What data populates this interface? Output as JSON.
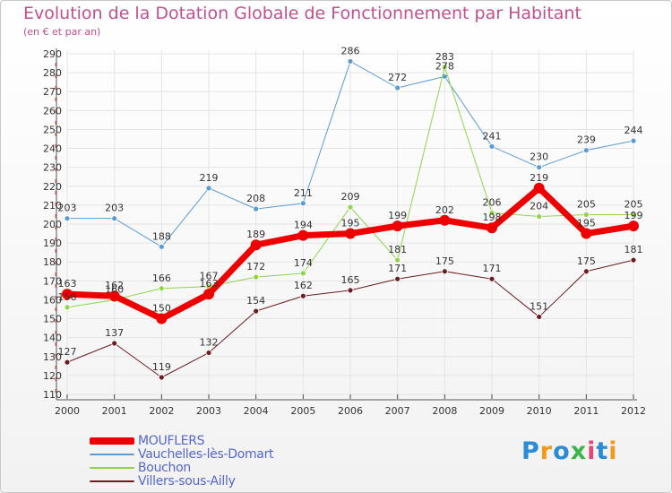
{
  "header": {
    "title": "Evolution de la Dotation Globale de Fonctionnement par Habitant",
    "subtitle": "(en € et par an)"
  },
  "logo": {
    "text": "Proxiti",
    "colors": [
      "#2a8bd6",
      "#f29a1a",
      "#2a8bd6",
      "#39b54a",
      "#e6457a",
      "#2a8bd6",
      "#f29a1a"
    ]
  },
  "chart_data": {
    "type": "line",
    "x": [
      "2000",
      "2001",
      "2002",
      "2003",
      "2004",
      "2005",
      "2006",
      "2007",
      "2008",
      "2009",
      "2010",
      "2011",
      "2012"
    ],
    "ylim": [
      110,
      290
    ],
    "yticks": [
      110,
      120,
      130,
      140,
      150,
      160,
      170,
      180,
      190,
      200,
      210,
      220,
      230,
      240,
      250,
      260,
      270,
      280,
      290
    ],
    "grid": true,
    "legend_position": "bottom-left",
    "series": [
      {
        "name": "Vauchelles-lès-Domart",
        "color": "#5b9bd5",
        "width": 1,
        "marker": 3,
        "values": [
          203,
          203,
          188,
          219,
          208,
          211,
          286,
          272,
          278,
          241,
          230,
          239,
          244
        ]
      },
      {
        "name": "Bouchon",
        "color": "#8fd44a",
        "width": 1,
        "marker": 3,
        "values": [
          156,
          160,
          166,
          167,
          172,
          174,
          209,
          181,
          283,
          206,
          204,
          205,
          205
        ]
      },
      {
        "name": "Villers-sous-Ailly",
        "color": "#6b1d22",
        "width": 1,
        "marker": 3,
        "values": [
          127,
          137,
          119,
          132,
          154,
          162,
          165,
          171,
          175,
          171,
          151,
          175,
          181
        ]
      },
      {
        "name": "MOUFLERS",
        "color": "#ee0000",
        "width": 7,
        "marker": 6,
        "values": [
          163,
          162,
          150,
          163,
          189,
          194,
          195,
          199,
          202,
          198,
          219,
          195,
          199
        ]
      }
    ],
    "legend_order": [
      "MOUFLERS",
      "Vauchelles-lès-Domart",
      "Bouchon",
      "Villers-sous-Ailly"
    ]
  }
}
